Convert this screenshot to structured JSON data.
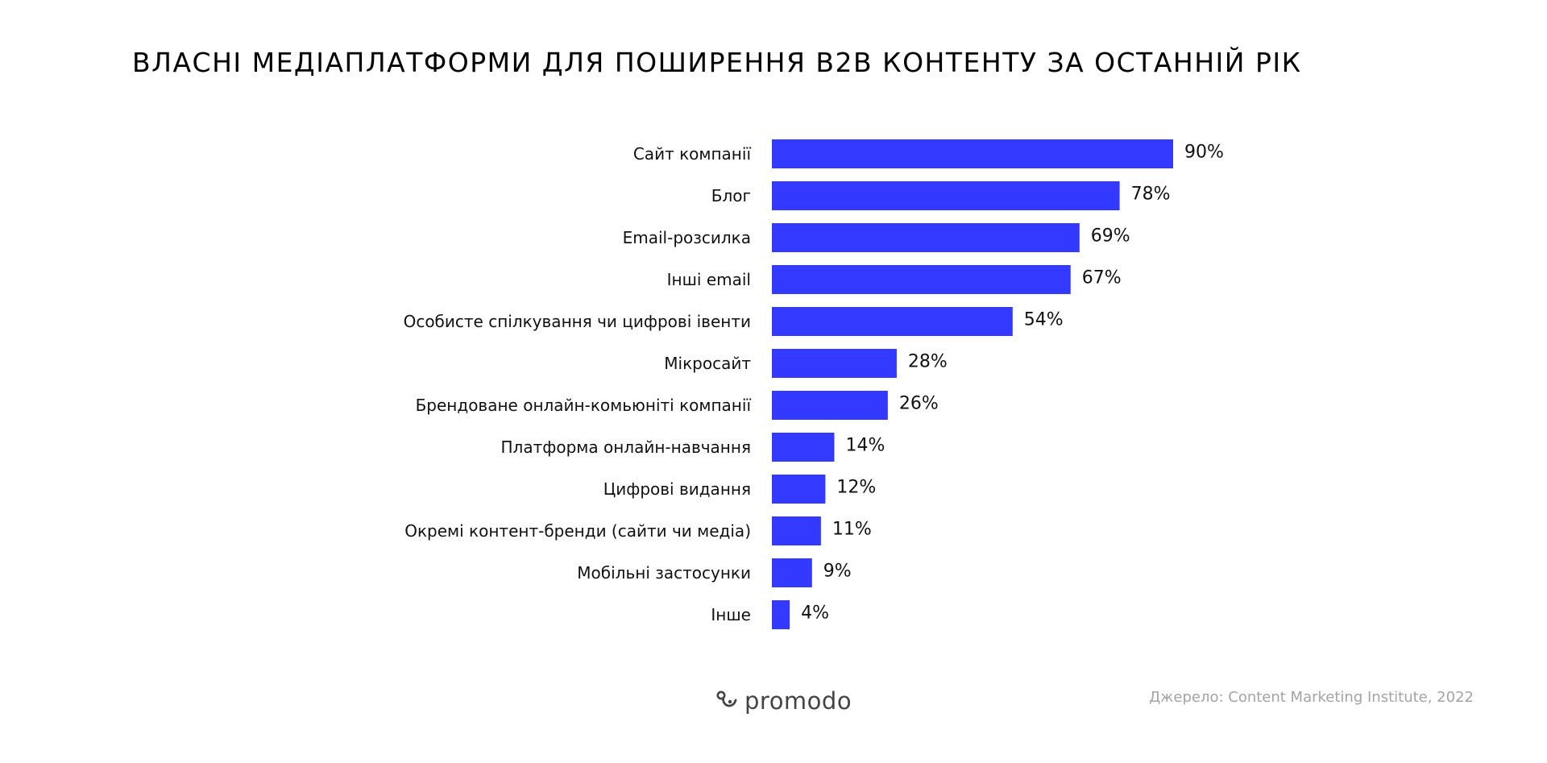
{
  "colors": {
    "bar": "#3339ff",
    "text": "#111111",
    "source": "#a3a3a8",
    "logo": "#444444"
  },
  "chart_data": {
    "type": "bar",
    "orientation": "horizontal",
    "title": "ВЛАСНІ МЕДІАПЛАТФОРМИ ДЛЯ ПОШИРЕННЯ B2B КОНТЕНТУ ЗА ОСТАННІЙ РІК",
    "categories": [
      "Сайт компанії",
      "Блог",
      "Email-розсилка",
      "Інші email",
      "Особисте спілкування чи цифрові івенти",
      "Мікросайт",
      "Брендоване онлайн-комьюніті компанії",
      "Платформа онлайн-навчання",
      "Цифрові видання",
      "Окремі контент-бренди (сайти чи медіа)",
      "Мобільні застосунки",
      "Інше"
    ],
    "values": [
      90,
      78,
      69,
      67,
      54,
      28,
      26,
      14,
      12,
      11,
      9,
      4
    ],
    "value_labels": [
      "90%",
      "78%",
      "69%",
      "67%",
      "54%",
      "28%",
      "26%",
      "14%",
      "12%",
      "11%",
      "9%",
      "4%"
    ],
    "unit": "%",
    "xlim": [
      0,
      90
    ],
    "grid": false,
    "legend": "none"
  },
  "footer": {
    "logo_text": "promodo",
    "logo_icon": "promodo-logo-icon",
    "source": "Джерело: Content Marketing Institute, 2022"
  }
}
